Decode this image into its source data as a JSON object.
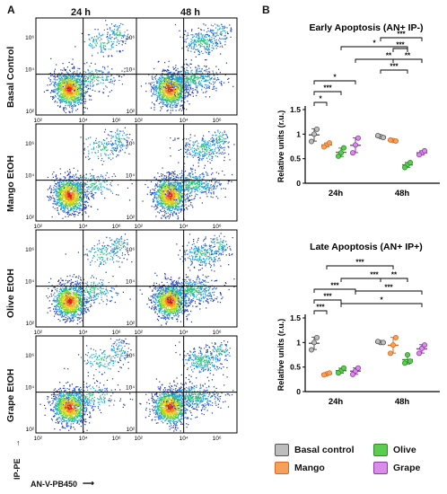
{
  "panel_a": {
    "letter": "A",
    "columns": [
      "24 h",
      "48 h"
    ],
    "rows": [
      "Basal Control",
      "Mango EtOH",
      "Olive EtOH",
      "Grape EtOH"
    ],
    "y_axis_label": "IP-PE",
    "x_axis_label": "AN-V-PB450",
    "y_ticks": [
      "10⁶",
      "10⁴",
      "10²"
    ],
    "x_ticks": [
      "10²",
      "10⁴",
      "10⁶"
    ]
  },
  "panel_b": {
    "letter": "B",
    "legend": [
      {
        "label": "Basal control",
        "color": "#bdbdbd",
        "edge": "#555555"
      },
      {
        "label": "Mango",
        "color": "#f5a15a",
        "edge": "#d96a1b"
      },
      {
        "label": "Olive",
        "color": "#5ccc4e",
        "edge": "#2e8b2a"
      },
      {
        "label": "Grape",
        "color": "#d98ce8",
        "edge": "#8b3aa0"
      }
    ]
  },
  "chart_data": [
    {
      "type": "scatter",
      "title": "Early Apoptosis (AN+ IP-)",
      "ylabel": "Relative units (r.u.)",
      "xlabel": "",
      "categories": [
        "24h",
        "48h"
      ],
      "ylim": [
        0,
        1.5
      ],
      "yticks": [
        "0",
        "0.5",
        "1",
        "1.5"
      ],
      "series": [
        {
          "name": "Basal control",
          "points": [
            [
              1.0,
              0.85,
              1.1
            ],
            [
              0.95,
              0.97,
              0.93
            ]
          ]
        },
        {
          "name": "Mango",
          "points": [
            [
              0.78,
              0.74,
              0.82
            ],
            [
              0.87,
              0.88,
              0.86
            ]
          ]
        },
        {
          "name": "Olive",
          "points": [
            [
              0.62,
              0.55,
              0.72
            ],
            [
              0.38,
              0.32,
              0.42
            ]
          ]
        },
        {
          "name": "Grape",
          "points": [
            [
              0.78,
              0.62,
              0.92
            ],
            [
              0.62,
              0.58,
              0.66
            ]
          ]
        }
      ],
      "significance": [
        {
          "label": "*",
          "from": "24h-Basal control",
          "to": "24h-Mango"
        },
        {
          "label": "***",
          "from": "24h-Basal control",
          "to": "24h-Olive"
        },
        {
          "label": "*",
          "from": "24h-Basal control",
          "to": "24h-Grape"
        },
        {
          "label": "***",
          "from": "48h-Basal control",
          "to": "48h-Olive"
        },
        {
          "label": "**",
          "from": "48h-Mango",
          "to": "48h-Grape"
        },
        {
          "label": "***",
          "from": "48h-Mango",
          "to": "48h-Olive"
        },
        {
          "label": "***",
          "from": "48h-Basal control",
          "to": "48h-Grape"
        },
        {
          "label": "*",
          "from": "24h-Olive",
          "to": "48h-Olive"
        },
        {
          "label": "**",
          "from": "24h-Grape",
          "to": "48h-Grape"
        }
      ]
    },
    {
      "type": "scatter",
      "title": "Late Apoptosis (AN+ IP+)",
      "ylabel": "Relative units (r.u.)",
      "xlabel": "",
      "categories": [
        "24h",
        "48h"
      ],
      "ylim": [
        0,
        1.5
      ],
      "yticks": [
        "0",
        "0.5",
        "1",
        "1.5"
      ],
      "series": [
        {
          "name": "Basal control",
          "points": [
            [
              1.0,
              0.85,
              1.1
            ],
            [
              1.0,
              1.02,
              1.0
            ]
          ]
        },
        {
          "name": "Mango",
          "points": [
            [
              0.36,
              0.34,
              0.38
            ],
            [
              0.95,
              0.78,
              1.1
            ]
          ]
        },
        {
          "name": "Olive",
          "points": [
            [
              0.42,
              0.38,
              0.48
            ],
            [
              0.75,
              0.58,
              0.62
            ]
          ]
        },
        {
          "name": "Grape",
          "points": [
            [
              0.42,
              0.35,
              0.48
            ],
            [
              0.88,
              0.78,
              0.95
            ]
          ]
        }
      ],
      "significance": [
        {
          "label": "***",
          "from": "24h-Basal control",
          "to": "24h-Mango"
        },
        {
          "label": "***",
          "from": "24h-Basal control",
          "to": "24h-Olive"
        },
        {
          "label": "***",
          "from": "24h-Basal control",
          "to": "24h-Grape"
        },
        {
          "label": "**",
          "from": "48h-Basal control",
          "to": "48h-Olive"
        },
        {
          "label": "***",
          "from": "24h-Mango",
          "to": "48h-Mango"
        },
        {
          "label": "***",
          "from": "24h-Olive",
          "to": "48h-Olive"
        },
        {
          "label": "***",
          "from": "24h-Grape",
          "to": "48h-Grape"
        },
        {
          "label": "*",
          "from": "24h-Olive",
          "to": "48h-Grape"
        }
      ]
    }
  ]
}
